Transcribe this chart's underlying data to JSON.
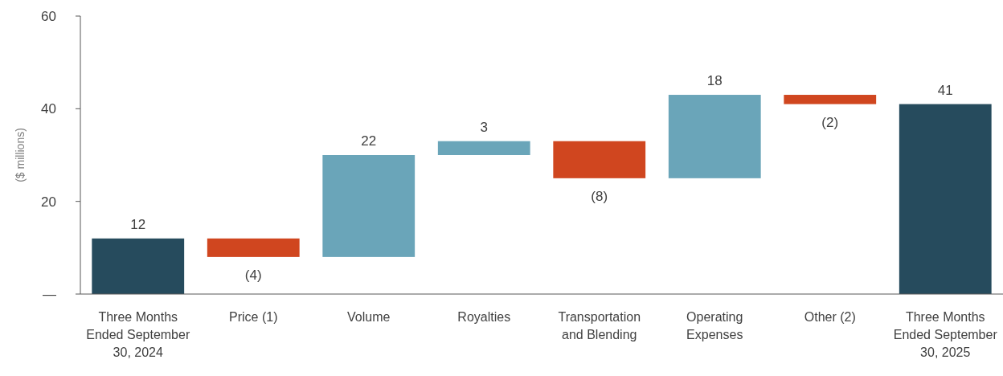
{
  "chart_data": {
    "type": "bar",
    "ylabel": "($ millions)",
    "categories": [
      "Three Months Ended September 30, 2024",
      "Price (1)",
      "Volume",
      "Royalties",
      "Transportation and Blending",
      "Operating Expenses",
      "Other (2)",
      "Three Months Ended September 30, 2025"
    ],
    "values": [
      12,
      -4,
      22,
      3,
      -8,
      18,
      -2,
      41
    ],
    "base": [
      0,
      12,
      8,
      30,
      33,
      25,
      43,
      0
    ],
    "colors": [
      "#264b5d",
      "#d0461f",
      "#6aa5b9",
      "#6aa5b9",
      "#d0461f",
      "#6aa5b9",
      "#d0461f",
      "#264b5d"
    ],
    "value_labels": [
      "12",
      "(4)",
      "22",
      "3",
      "(8)",
      "18",
      "(2)",
      "41"
    ],
    "ylim": [
      0,
      60
    ],
    "yticks": [
      {
        "value": 0,
        "label": "—"
      },
      20,
      40,
      60
    ],
    "grid": false
  }
}
